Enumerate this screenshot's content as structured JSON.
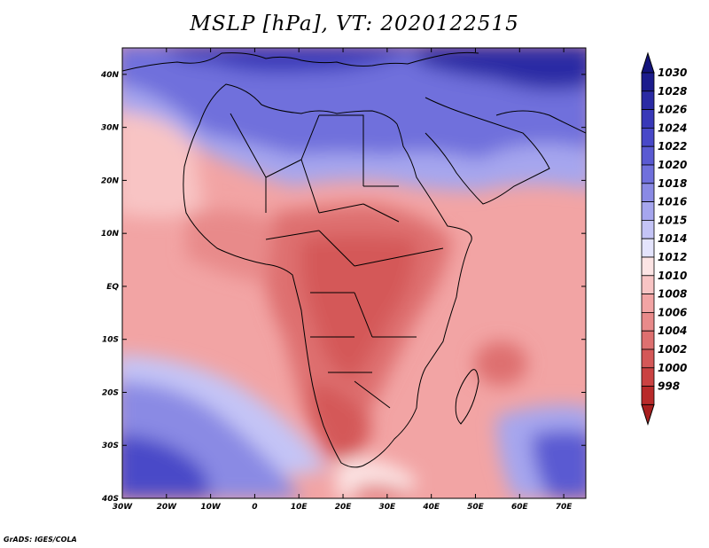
{
  "title": "MSLP [hPa], VT: 2020122515",
  "credit": "GrADS: IGES/COLA",
  "map": {
    "lon_range": [
      -30,
      75
    ],
    "lat_range": [
      -40,
      45
    ],
    "lon_ticks": [
      {
        "lon": -30,
        "label": "30W"
      },
      {
        "lon": -20,
        "label": "20W"
      },
      {
        "lon": -10,
        "label": "10W"
      },
      {
        "lon": 0,
        "label": "0"
      },
      {
        "lon": 10,
        "label": "10E"
      },
      {
        "lon": 20,
        "label": "20E"
      },
      {
        "lon": 30,
        "label": "30E"
      },
      {
        "lon": 40,
        "label": "40E"
      },
      {
        "lon": 50,
        "label": "50E"
      },
      {
        "lon": 60,
        "label": "60E"
      },
      {
        "lon": 70,
        "label": "70E"
      }
    ],
    "lat_ticks": [
      {
        "lat": 40,
        "label": "40N"
      },
      {
        "lat": 30,
        "label": "30N"
      },
      {
        "lat": 20,
        "label": "20N"
      },
      {
        "lat": 10,
        "label": "10N"
      },
      {
        "lat": 0,
        "label": "EQ"
      },
      {
        "lat": -10,
        "label": "10S"
      },
      {
        "lat": -20,
        "label": "20S"
      },
      {
        "lat": -30,
        "label": "30S"
      },
      {
        "lat": -40,
        "label": "40S"
      }
    ]
  },
  "colorbar": {
    "levels": [
      {
        "label": "1030",
        "color": "#1c1c8c"
      },
      {
        "label": "1028",
        "color": "#2a2aa4"
      },
      {
        "label": "1026",
        "color": "#3838b8"
      },
      {
        "label": "1024",
        "color": "#4848c8"
      },
      {
        "label": "1022",
        "color": "#5a5ad2"
      },
      {
        "label": "1020",
        "color": "#7070dc"
      },
      {
        "label": "1018",
        "color": "#8a8ae4"
      },
      {
        "label": "1016",
        "color": "#a6a6ee"
      },
      {
        "label": "1015",
        "color": "#c4c4f6"
      },
      {
        "label": "1014",
        "color": "#e4e4fc"
      },
      {
        "label": "1012",
        "color": "#fce4e4"
      },
      {
        "label": "1010",
        "color": "#f8c4c4"
      },
      {
        "label": "1008",
        "color": "#f2a4a4"
      },
      {
        "label": "1006",
        "color": "#e88a8a"
      },
      {
        "label": "1004",
        "color": "#de7070"
      },
      {
        "label": "1002",
        "color": "#d45858"
      },
      {
        "label": "1000",
        "color": "#ca4242"
      },
      {
        "label": "998",
        "color": "#b82a2a"
      }
    ],
    "top_arrow_color": "#14147c",
    "bottom_arrow_color": "#a81e1e"
  }
}
